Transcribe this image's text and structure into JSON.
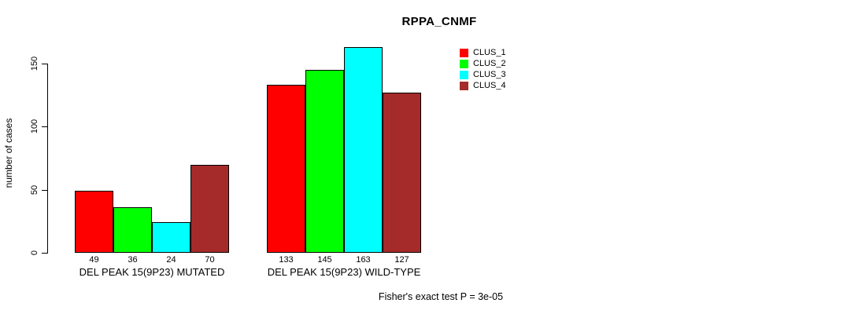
{
  "title": "RPPA_CNMF",
  "y_axis": {
    "label": "number of cases",
    "ticks": [
      "0",
      "50",
      "100",
      "150"
    ]
  },
  "footer": "Fisher's exact test P = 3e-05",
  "legend": {
    "items": [
      {
        "label": "CLUS_1",
        "color": "#ff0000"
      },
      {
        "label": "CLUS_2",
        "color": "#00ff00"
      },
      {
        "label": "CLUS_3",
        "color": "#00ffff"
      },
      {
        "label": "CLUS_4",
        "color": "#a52a2a"
      }
    ]
  },
  "chart_data": {
    "type": "bar",
    "title": "RPPA_CNMF",
    "xlabel": "",
    "ylabel": "number of cases",
    "categories": [
      "DEL PEAK 15(9P23) MUTATED",
      "DEL PEAK 15(9P23) WILD-TYPE"
    ],
    "series": [
      {
        "name": "CLUS_1",
        "color": "#ff0000",
        "values": [
          49,
          133
        ]
      },
      {
        "name": "CLUS_2",
        "color": "#00ff00",
        "values": [
          36,
          145
        ]
      },
      {
        "name": "CLUS_3",
        "color": "#00ffff",
        "values": [
          24,
          163
        ]
      },
      {
        "name": "CLUS_4",
        "color": "#a52a2a",
        "values": [
          70,
          127
        ]
      }
    ],
    "bar_value_labels": [
      [
        49,
        36,
        24,
        70
      ],
      [
        133,
        145,
        163,
        127
      ]
    ],
    "ylim": [
      0,
      150
    ],
    "yticks": [
      0,
      50,
      100,
      150
    ],
    "grid": false,
    "legend_position": "right-of-plot-top",
    "annotation": "Fisher's exact test P = 3e-05"
  }
}
